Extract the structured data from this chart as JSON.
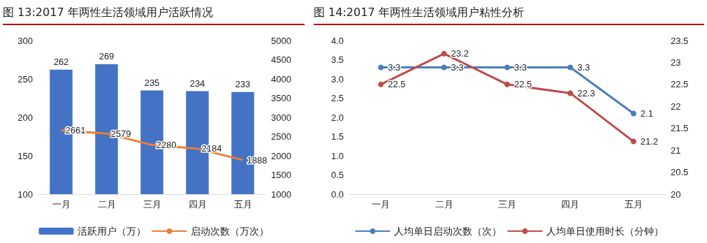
{
  "chart_data": [
    {
      "type": "bar",
      "title": "图 13:2017 年两性生活领域用户活跃情况",
      "categories": [
        "一月",
        "二月",
        "三月",
        "四月",
        "五月"
      ],
      "series": [
        {
          "name": "活跃用户（万）",
          "color": "#4472c4",
          "values": [
            262,
            269,
            235,
            234,
            233
          ]
        },
        {
          "name": "启动次数（万次）",
          "type": "line",
          "axis": "y2",
          "color": "#ed7d31",
          "values": [
            2661,
            2579,
            2280,
            2184,
            1888
          ]
        }
      ],
      "ylim": [
        100,
        300
      ],
      "yticks": [
        100,
        150,
        200,
        250,
        300
      ],
      "y2lim": [
        1000,
        5000
      ],
      "y2ticks": [
        1000,
        1500,
        2000,
        2500,
        3000,
        3500,
        4000,
        4500,
        5000
      ],
      "data_labels": true,
      "grid": false,
      "legend": "bottom"
    },
    {
      "type": "line",
      "title": "图 14:2017 年两性生活领域用户粘性分析",
      "categories": [
        "一月",
        "二月",
        "三月",
        "四月",
        "五月"
      ],
      "series": [
        {
          "name": "人均单日启动次数（次）",
          "color": "#4a7ebb",
          "values": [
            3.3,
            3.3,
            3.3,
            3.3,
            2.1
          ]
        },
        {
          "name": "人均单日使用时长（分钟）",
          "axis": "y2",
          "color": "#be4b48",
          "values": [
            22.5,
            23.2,
            22.5,
            22.3,
            21.2
          ]
        }
      ],
      "ylim": [
        0,
        4
      ],
      "yticks": [
        {
          "value": 0,
          "label": "0.0"
        },
        {
          "value": 0.5,
          "label": "0.5"
        },
        {
          "value": 1,
          "label": "1.0"
        },
        {
          "value": 1.5,
          "label": "1.5"
        },
        {
          "value": 2,
          "label": "2.0"
        },
        {
          "value": 2.5,
          "label": "2.5"
        },
        {
          "value": 3,
          "label": "3.0"
        },
        {
          "value": 3.5,
          "label": "3.5"
        },
        {
          "value": 4,
          "label": "4.0"
        }
      ],
      "y2lim": [
        20,
        23.5
      ],
      "y2ticks": [
        20,
        20.5,
        21,
        21.5,
        22,
        22.5,
        23,
        23.5
      ],
      "data_labels": true,
      "grid": false,
      "legend": "bottom",
      "marker": "circle"
    }
  ]
}
